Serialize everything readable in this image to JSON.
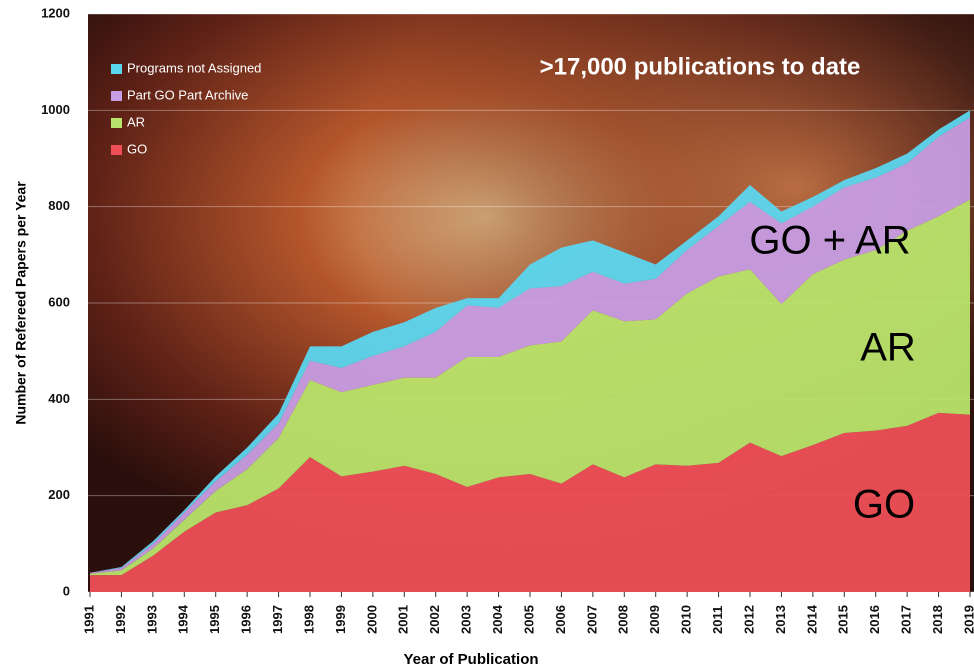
{
  "chart_data": {
    "type": "stacked_area",
    "x_label": "Year of Publication",
    "y_label": "Number of Refereed Papers per Year",
    "annotations": [
      ">17,000 publications to date",
      "GO + AR",
      "AR",
      "GO"
    ],
    "x": [
      1991,
      1992,
      1993,
      1994,
      1995,
      1996,
      1997,
      1998,
      1999,
      2000,
      2001,
      2002,
      2003,
      2004,
      2005,
      2006,
      2007,
      2008,
      2009,
      2010,
      2011,
      2012,
      2013,
      2014,
      2015,
      2016,
      2017,
      2018,
      2019
    ],
    "xlim": [
      1991,
      2019
    ],
    "xticks": [
      1991,
      1992,
      1993,
      1994,
      1995,
      1996,
      1997,
      1998,
      1999,
      2000,
      2001,
      2002,
      2003,
      2004,
      2005,
      2006,
      2007,
      2008,
      2009,
      2010,
      2011,
      2012,
      2013,
      2014,
      2015,
      2016,
      2017,
      2018,
      2019
    ],
    "ylim": [
      0,
      1200
    ],
    "yticks": [
      0,
      200,
      400,
      600,
      800,
      1000,
      1200
    ],
    "grid": true,
    "legend": "upper left",
    "series": [
      {
        "name": "GO",
        "color": "#ef4f57",
        "values": [
          35,
          35,
          75,
          125,
          165,
          180,
          215,
          280,
          240,
          250,
          262,
          245,
          218,
          238,
          245,
          225,
          265,
          238,
          265,
          262,
          268,
          310,
          282,
          305,
          330,
          335,
          345,
          372,
          368
        ]
      },
      {
        "name": "AR",
        "color": "#b9e46c",
        "values": [
          3,
          10,
          15,
          25,
          45,
          75,
          105,
          160,
          175,
          180,
          183,
          200,
          270,
          250,
          267,
          295,
          320,
          324,
          301,
          358,
          387,
          360,
          316,
          355,
          360,
          375,
          405,
          408,
          447
        ]
      },
      {
        "name": "Part GO Part Archive",
        "color": "#c79de3",
        "values": [
          2,
          5,
          10,
          15,
          20,
          30,
          30,
          40,
          50,
          60,
          65,
          95,
          107,
          102,
          118,
          115,
          80,
          78,
          84,
          90,
          105,
          140,
          167,
          140,
          150,
          150,
          140,
          165,
          170
        ]
      },
      {
        "name": "Programs not Assigned",
        "color": "#5bd6ef",
        "values": [
          0,
          2,
          5,
          5,
          10,
          15,
          20,
          30,
          45,
          50,
          50,
          50,
          15,
          20,
          50,
          80,
          65,
          65,
          30,
          20,
          20,
          35,
          25,
          20,
          15,
          20,
          20,
          15,
          15
        ]
      }
    ]
  }
}
